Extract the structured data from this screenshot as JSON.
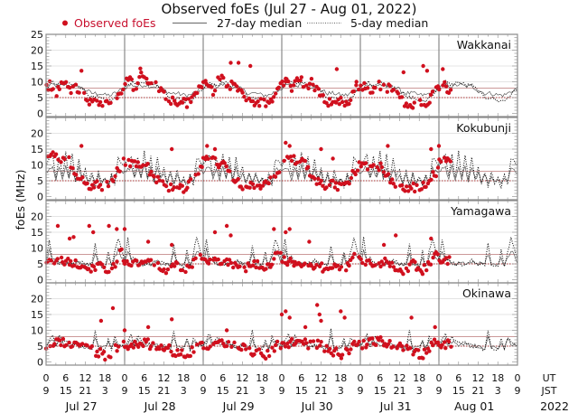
{
  "chart_data": {
    "type": "scatter",
    "title": "Observed foEs (Jul 27 - Aug 01, 2022)",
    "ylabel": "foEs (MHz)",
    "xlabel": "",
    "legend": {
      "placement": "top",
      "entries": [
        {
          "label": "Observed foEs",
          "marker": "red-dot",
          "color": "#d0101e"
        },
        {
          "label": "27-day median",
          "marker": "solid-line",
          "color": "#333333"
        },
        {
          "label": "5-day median",
          "marker": "dotted-line",
          "color": "#333333"
        }
      ]
    },
    "ylim": [
      -1,
      25
    ],
    "yticks": [
      0,
      5,
      10,
      15,
      20,
      25
    ],
    "reference_lines": {
      "upper_red_line_MHz": 8,
      "lower_dotted_line_MHz": 5
    },
    "x_hours_per_day": 24,
    "x_ticks_ut": [
      "0",
      "6",
      "12",
      "18",
      "0",
      "6",
      "12",
      "18",
      "0",
      "6",
      "12",
      "18",
      "0",
      "6",
      "12",
      "18",
      "0",
      "6",
      "12",
      "18",
      "0",
      "6",
      "12",
      "18",
      "0"
    ],
    "x_ticks_jst": [
      "9",
      "15",
      "21",
      "3",
      "9",
      "15",
      "21",
      "3",
      "9",
      "15",
      "21",
      "3",
      "9",
      "15",
      "21",
      "3",
      "9",
      "15",
      "21",
      "3",
      "9",
      "15",
      "21",
      "3",
      "9"
    ],
    "x_row_labels": {
      "ut": "UT",
      "jst": "JST"
    },
    "days": [
      "Jul 27",
      "Jul 28",
      "Jul 29",
      "Jul 30",
      "Jul 31",
      "Aug 01"
    ],
    "year": "2022",
    "observed_until_day_fraction": 5.15,
    "panels": [
      {
        "station": "Wakkanai",
        "show_top_tick_label": true,
        "median27": 8.0,
        "observed_daily_profile": [
          [
            0,
            8
          ],
          [
            1,
            9
          ],
          [
            2,
            8
          ],
          [
            3,
            6
          ],
          [
            4,
            8
          ],
          [
            5,
            10
          ],
          [
            6,
            9
          ],
          [
            7,
            8
          ],
          [
            8,
            7
          ],
          [
            9,
            9
          ],
          [
            10,
            7
          ],
          [
            11,
            6
          ],
          [
            12,
            5
          ],
          [
            13,
            4
          ],
          [
            14,
            3
          ],
          [
            15,
            3.5
          ],
          [
            16,
            3
          ],
          [
            17,
            3
          ],
          [
            18,
            3.5
          ],
          [
            19,
            2.5
          ],
          [
            20,
            3
          ],
          [
            21,
            4
          ],
          [
            22,
            6
          ],
          [
            23,
            7
          ]
        ],
        "observed_daily_amplitude": [
          1.0,
          1.25,
          1.15,
          1.15,
          1.0,
          1.05
        ],
        "observed_outliers": [
          [
            0.45,
            13.5
          ],
          [
            1.2,
            14.2
          ],
          [
            2.35,
            16
          ],
          [
            2.45,
            16
          ],
          [
            2.6,
            15
          ],
          [
            3.05,
            11
          ],
          [
            3.7,
            14
          ],
          [
            3.95,
            10
          ],
          [
            4.55,
            13
          ],
          [
            4.8,
            15
          ],
          [
            4.85,
            13.5
          ],
          [
            5.05,
            14
          ]
        ],
        "median5_daily_profile": [
          [
            0,
            8
          ],
          [
            2,
            10
          ],
          [
            4,
            9
          ],
          [
            6,
            10
          ],
          [
            8,
            9
          ],
          [
            10,
            9
          ],
          [
            12,
            7
          ],
          [
            14,
            5
          ],
          [
            16,
            5
          ],
          [
            18,
            4
          ],
          [
            20,
            4
          ],
          [
            22,
            6
          ],
          [
            24,
            8
          ]
        ]
      },
      {
        "station": "Kokubunji",
        "show_top_tick_label": false,
        "median27": 5.0,
        "observed_daily_profile": [
          [
            0,
            13
          ],
          [
            1,
            13
          ],
          [
            2,
            12
          ],
          [
            3,
            13
          ],
          [
            4,
            12
          ],
          [
            5,
            11
          ],
          [
            6,
            12
          ],
          [
            7,
            11
          ],
          [
            8,
            9
          ],
          [
            9,
            7
          ],
          [
            10,
            6
          ],
          [
            11,
            5
          ],
          [
            12,
            4
          ],
          [
            13,
            3
          ],
          [
            14,
            3
          ],
          [
            15,
            4
          ],
          [
            16,
            4
          ],
          [
            17,
            3
          ],
          [
            18,
            3
          ],
          [
            19,
            4
          ],
          [
            20,
            5
          ],
          [
            21,
            6
          ],
          [
            22,
            8
          ],
          [
            23,
            9
          ]
        ],
        "observed_daily_amplitude": [
          1.05,
          0.85,
          0.9,
          0.95,
          0.8,
          0.9
        ],
        "observed_outliers": [
          [
            0.45,
            16
          ],
          [
            1.6,
            15
          ],
          [
            2.05,
            16
          ],
          [
            2.15,
            15
          ],
          [
            3.05,
            17
          ],
          [
            3.1,
            16
          ],
          [
            3.5,
            15
          ],
          [
            3.65,
            12
          ],
          [
            4.35,
            16
          ],
          [
            4.9,
            15
          ],
          [
            5.0,
            16
          ]
        ],
        "median5_daily_profile": [
          [
            0,
            10
          ],
          [
            2,
            13
          ],
          [
            3,
            6
          ],
          [
            4,
            13
          ],
          [
            5,
            6
          ],
          [
            6,
            14
          ],
          [
            7,
            6
          ],
          [
            8,
            13
          ],
          [
            9,
            5
          ],
          [
            10,
            12
          ],
          [
            11,
            6
          ],
          [
            12,
            9
          ],
          [
            13,
            4
          ],
          [
            14,
            8
          ],
          [
            15,
            3
          ],
          [
            16,
            8
          ],
          [
            17,
            4
          ],
          [
            18,
            6
          ],
          [
            19,
            3
          ],
          [
            20,
            7
          ],
          [
            21,
            4
          ],
          [
            22,
            12
          ],
          [
            24,
            10
          ]
        ]
      },
      {
        "station": "Yamagawa",
        "show_top_tick_label": false,
        "median27": 5.0,
        "observed_daily_profile": [
          [
            0,
            6
          ],
          [
            1,
            6
          ],
          [
            2,
            5
          ],
          [
            3,
            6
          ],
          [
            4,
            5
          ],
          [
            5,
            6
          ],
          [
            6,
            5
          ],
          [
            7,
            6
          ],
          [
            8,
            5
          ],
          [
            9,
            5
          ],
          [
            10,
            4
          ],
          [
            11,
            4
          ],
          [
            12,
            4
          ],
          [
            13,
            3
          ],
          [
            14,
            4
          ],
          [
            15,
            4
          ],
          [
            16,
            5
          ],
          [
            17,
            4
          ],
          [
            18,
            3
          ],
          [
            19,
            3
          ],
          [
            20,
            4
          ],
          [
            21,
            5
          ],
          [
            22,
            7
          ],
          [
            23,
            9
          ]
        ],
        "observed_daily_amplitude": [
          1.0,
          1.0,
          1.05,
          1.05,
          1.0,
          1.1
        ],
        "observed_outliers": [
          [
            0.15,
            17
          ],
          [
            0.3,
            13
          ],
          [
            0.35,
            13.5
          ],
          [
            0.55,
            17
          ],
          [
            0.6,
            15
          ],
          [
            0.8,
            17
          ],
          [
            0.9,
            16
          ],
          [
            1.0,
            16
          ],
          [
            1.3,
            12
          ],
          [
            1.6,
            11
          ],
          [
            2.15,
            15
          ],
          [
            2.3,
            17
          ],
          [
            2.35,
            14
          ],
          [
            2.9,
            16
          ],
          [
            3.05,
            15
          ],
          [
            3.1,
            16
          ],
          [
            3.35,
            12
          ],
          [
            4.3,
            11
          ],
          [
            4.45,
            14
          ],
          [
            4.9,
            13
          ]
        ],
        "median5_daily_profile": [
          [
            0,
            6
          ],
          [
            1,
            13
          ],
          [
            2,
            6
          ],
          [
            3,
            7
          ],
          [
            4,
            5
          ],
          [
            6,
            5
          ],
          [
            8,
            5
          ],
          [
            10,
            6
          ],
          [
            12,
            5
          ],
          [
            14,
            5
          ],
          [
            15,
            11
          ],
          [
            16,
            5
          ],
          [
            18,
            4
          ],
          [
            19,
            9
          ],
          [
            20,
            4
          ],
          [
            22,
            13
          ],
          [
            24,
            6
          ]
        ]
      },
      {
        "station": "Okinawa",
        "show_top_tick_label": false,
        "median27": 5.0,
        "observed_daily_profile": [
          [
            0,
            5
          ],
          [
            1,
            5
          ],
          [
            2,
            5
          ],
          [
            3,
            6
          ],
          [
            4,
            6
          ],
          [
            5,
            6
          ],
          [
            6,
            6
          ],
          [
            7,
            6
          ],
          [
            8,
            5
          ],
          [
            9,
            5
          ],
          [
            10,
            5
          ],
          [
            11,
            5
          ],
          [
            12,
            5
          ],
          [
            13,
            4
          ],
          [
            14,
            4
          ],
          [
            15,
            3
          ],
          [
            16,
            3
          ],
          [
            17,
            3
          ],
          [
            18,
            2
          ],
          [
            19,
            2
          ],
          [
            20,
            3
          ],
          [
            21,
            4
          ],
          [
            22,
            5
          ],
          [
            23,
            6
          ]
        ],
        "observed_daily_amplitude": [
          1.0,
          1.0,
          1.0,
          1.1,
          1.1,
          1.0
        ],
        "observed_outliers": [
          [
            0.7,
            13
          ],
          [
            0.85,
            17
          ],
          [
            1.6,
            13.5
          ],
          [
            1.3,
            11
          ],
          [
            1.0,
            10
          ],
          [
            2.3,
            10
          ],
          [
            3.0,
            15
          ],
          [
            3.05,
            16
          ],
          [
            3.1,
            14
          ],
          [
            3.3,
            11
          ],
          [
            3.45,
            18
          ],
          [
            3.48,
            15
          ],
          [
            3.5,
            13
          ],
          [
            3.75,
            16
          ],
          [
            3.8,
            14
          ],
          [
            4.65,
            14
          ],
          [
            4.95,
            11
          ]
        ],
        "median5_daily_profile": [
          [
            0,
            5
          ],
          [
            2,
            9
          ],
          [
            3,
            5
          ],
          [
            4,
            8
          ],
          [
            6,
            6
          ],
          [
            8,
            6
          ],
          [
            10,
            5
          ],
          [
            12,
            5
          ],
          [
            14,
            4
          ],
          [
            15,
            10
          ],
          [
            16,
            4
          ],
          [
            18,
            4
          ],
          [
            19,
            7
          ],
          [
            20,
            4
          ],
          [
            21,
            8
          ],
          [
            22,
            6
          ],
          [
            24,
            5
          ]
        ]
      }
    ]
  }
}
